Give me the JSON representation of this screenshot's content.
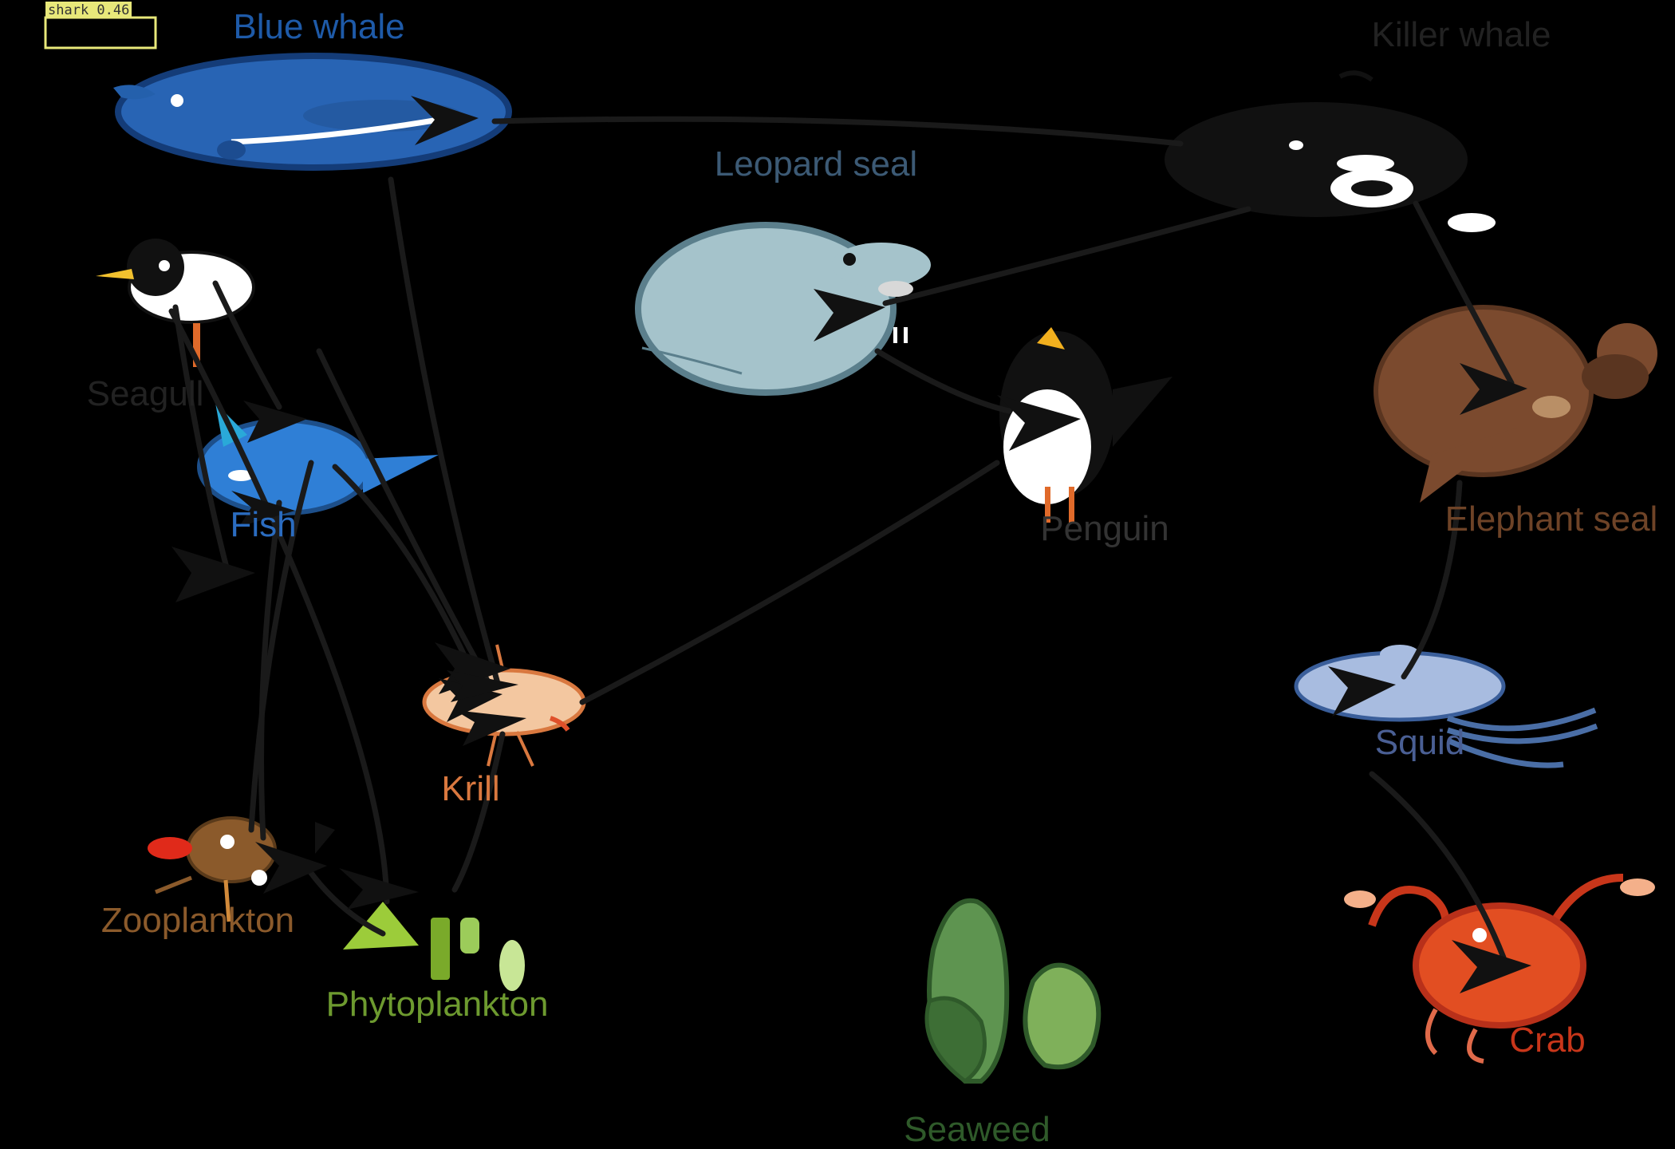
{
  "detection": {
    "label": "shark 0.46",
    "box_color": "#e8e87a"
  },
  "organisms": {
    "blue_whale": {
      "label": "Blue whale",
      "color": "#1e5aa8",
      "icon": "blue-whale-icon"
    },
    "killer_whale": {
      "label": "Killer whale",
      "color": "#222222",
      "icon": "killer-whale-icon"
    },
    "leopard_seal": {
      "label": "Leopard seal",
      "color": "#3c5a75",
      "icon": "leopard-seal-icon"
    },
    "seagull": {
      "label": "Seagull",
      "color": "#222222",
      "icon": "seagull-icon"
    },
    "fish": {
      "label": "Fish",
      "color": "#2b6cc0",
      "icon": "fish-icon"
    },
    "penguin": {
      "label": "Penguin",
      "color": "#333333",
      "icon": "penguin-icon"
    },
    "elephant_seal": {
      "label": "Elephant seal",
      "color": "#6e4327",
      "icon": "elephant-seal-icon"
    },
    "squid": {
      "label": "Squid",
      "color": "#4a5f94",
      "icon": "squid-icon"
    },
    "krill": {
      "label": "Krill",
      "color": "#d9783f",
      "icon": "krill-icon"
    },
    "zooplankton": {
      "label": "Zooplankton",
      "color": "#8b5a2b",
      "icon": "zooplankton-icon"
    },
    "phytoplankton": {
      "label": "Phytoplankton",
      "color": "#6d9a2f",
      "icon": "phytoplankton-icon"
    },
    "seaweed": {
      "label": "Seaweed",
      "color": "#2f5a2a",
      "icon": "seaweed-icon"
    },
    "crab": {
      "label": "Crab",
      "color": "#c8361a",
      "icon": "crab-icon"
    }
  },
  "food_web_links": [
    {
      "from": "blue_whale",
      "to": "killer_whale"
    },
    {
      "from": "killer_whale",
      "to": "leopard_seal"
    },
    {
      "from": "killer_whale",
      "to": "elephant_seal"
    },
    {
      "from": "leopard_seal",
      "to": "penguin"
    },
    {
      "from": "penguin",
      "to": "krill"
    },
    {
      "from": "blue_whale",
      "to": "krill"
    },
    {
      "from": "seagull",
      "to": "fish"
    },
    {
      "from": "seagull",
      "to": "zooplankton"
    },
    {
      "from": "fish",
      "to": "krill"
    },
    {
      "from": "fish",
      "to": "zooplankton"
    },
    {
      "from": "krill",
      "to": "phytoplankton"
    },
    {
      "from": "zooplankton",
      "to": "phytoplankton"
    },
    {
      "from": "elephant_seal",
      "to": "squid"
    },
    {
      "from": "squid",
      "to": "crab"
    }
  ]
}
